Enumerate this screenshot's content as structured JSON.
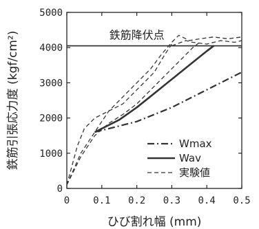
{
  "chart_data": {
    "type": "line",
    "xlabel": "ひび割れ幅 (mm)",
    "ylabel": "鉄筋引張応力度 (kgf/cm²)",
    "xlim": [
      0,
      0.5
    ],
    "ylim": [
      0,
      5000
    ],
    "x_ticks": [
      "0",
      "0.1",
      "0.2",
      "0.3",
      "0.4",
      "0.5"
    ],
    "y_ticks": [
      "0",
      "1000",
      "2000",
      "3000",
      "4000",
      "5000"
    ],
    "grid": false,
    "legend_position": "bottom-right",
    "reference_line": {
      "label": "鉄筋降伏点",
      "y": 4050
    },
    "series": [
      {
        "name": "Wmax",
        "style": "dash-dot",
        "x": [
          0.08,
          0.12,
          0.2,
          0.3,
          0.4,
          0.5
        ],
        "y": [
          1600,
          1700,
          1900,
          2300,
          2800,
          3300
        ]
      },
      {
        "name": "Wav",
        "style": "solid",
        "x": [
          0.08,
          0.15,
          0.2,
          0.25,
          0.3,
          0.35,
          0.4,
          0.42
        ],
        "y": [
          1600,
          1950,
          2300,
          2700,
          3100,
          3500,
          3900,
          4050
        ]
      },
      {
        "name": "実験値",
        "style": "dashed",
        "x": [
          0.0,
          0.03,
          0.05,
          0.08,
          0.12,
          0.16,
          0.2,
          0.25,
          0.28,
          0.3
        ],
        "y": [
          100,
          1200,
          1700,
          2000,
          2200,
          2400,
          2800,
          3300,
          3800,
          4100
        ]
      },
      {
        "name": "実験値",
        "style": "dashed",
        "x": [
          0.0,
          0.04,
          0.08,
          0.12,
          0.16,
          0.2,
          0.24,
          0.28,
          0.32,
          0.36,
          0.38
        ],
        "y": [
          100,
          900,
          1500,
          1850,
          2100,
          2400,
          2800,
          3200,
          3600,
          4000,
          4150
        ]
      },
      {
        "name": "実験値",
        "style": "dashed",
        "x": [
          0.0,
          0.04,
          0.08,
          0.12,
          0.16,
          0.2,
          0.24,
          0.27,
          0.3,
          0.32,
          0.35,
          0.38,
          0.42,
          0.46,
          0.5
        ],
        "y": [
          100,
          1000,
          1600,
          2200,
          2600,
          3000,
          3400,
          3800,
          4150,
          4350,
          4200,
          4250,
          4300,
          4250,
          4300
        ]
      },
      {
        "name": "実験値",
        "style": "dashed",
        "x": [
          0.3,
          0.34,
          0.36,
          0.4,
          0.44,
          0.48,
          0.5
        ],
        "y": [
          4050,
          4200,
          4150,
          4100,
          4200,
          4150,
          4200
        ]
      }
    ],
    "legend": [
      {
        "label": "Wmax",
        "style": "dash-dot"
      },
      {
        "label": "Wav",
        "style": "solid"
      },
      {
        "label": "実験値",
        "style": "dashed"
      }
    ]
  }
}
